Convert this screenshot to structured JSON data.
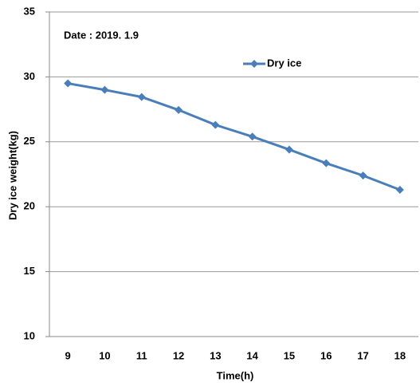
{
  "chart_data": {
    "type": "line",
    "annotation": "Date : 2019. 1.9",
    "x_label": "Time(h)",
    "y_label": "Dry ice weight(kg)",
    "categories": [
      "9",
      "10",
      "11",
      "12",
      "13",
      "14",
      "15",
      "16",
      "17",
      "18"
    ],
    "series": [
      {
        "name": "Dry ice",
        "color": "#4a7ebb",
        "values": [
          29.5,
          29.0,
          28.45,
          27.45,
          26.3,
          25.4,
          24.4,
          23.35,
          22.4,
          21.3
        ]
      }
    ],
    "ylim": [
      10,
      35
    ],
    "yticks": [
      10,
      15,
      20,
      25,
      30,
      35
    ],
    "grid": true,
    "legend": "top-right"
  }
}
